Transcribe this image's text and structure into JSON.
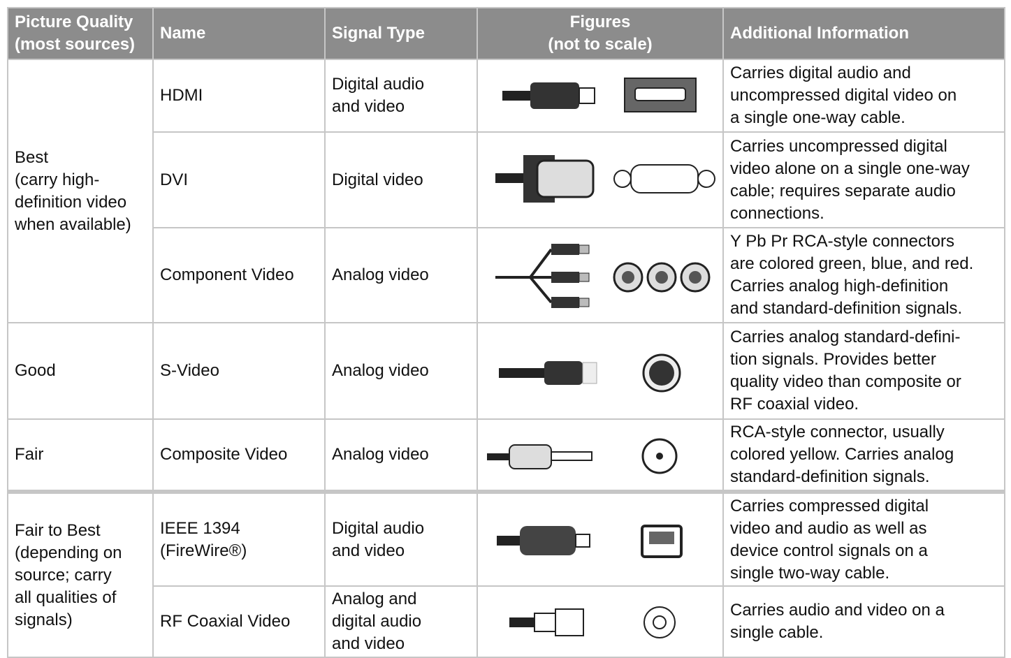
{
  "header": [
    "Picture Quality\n(most sources)",
    "Name",
    "Signal Type",
    "Figures\n(not to scale)",
    "Additional Information"
  ],
  "groups": [
    {
      "quality": "Best\n(carry high-\ndefinition video\nwhen available)",
      "items": [
        {
          "name": "HDMI",
          "signal": "Digital audio\nand video",
          "info": "Carries digital audio and\nuncompressed digital video  on\na single one-way cable."
        },
        {
          "name": "DVI",
          "signal": "Digital video",
          "info": "Carries uncompressed digital\nvideo alone on a single one-way\ncable; requires separate audio\nconnections."
        },
        {
          "name": "Component Video",
          "signal": "Analog video",
          "info": "Y Pb Pr RCA-style connectors\nare colored green, blue, and red.\nCarries analog high-definition\nand standard-definition signals."
        }
      ]
    },
    {
      "quality": "Good",
      "items": [
        {
          "name": "S-Video",
          "signal": "Analog video",
          "info": "Carries analog standard-defini-\ntion signals.  Provides better\nquality video than composite or\nRF coaxial video."
        }
      ]
    },
    {
      "quality": "Fair",
      "items": [
        {
          "name": "Composite Video",
          "signal": "Analog video",
          "info": "RCA-style connector, usually\ncolored yellow.  Carries analog\nstandard-definition signals."
        }
      ]
    },
    {
      "quality": "Fair to Best\n(depending on\nsource; carry\nall qualities of\nsignals)",
      "items": [
        {
          "name": "IEEE 1394\n(FireWire®)",
          "signal": "Digital audio\nand video",
          "info": "Carries compressed digital\nvideo and audio as well as\ndevice control signals on a\nsingle two-way cable."
        },
        {
          "name": "RF Coaxial Video",
          "signal": "Analog and\ndigital audio\nand video",
          "info": "Carries audio and video on a\nsingle cable."
        }
      ]
    }
  ]
}
